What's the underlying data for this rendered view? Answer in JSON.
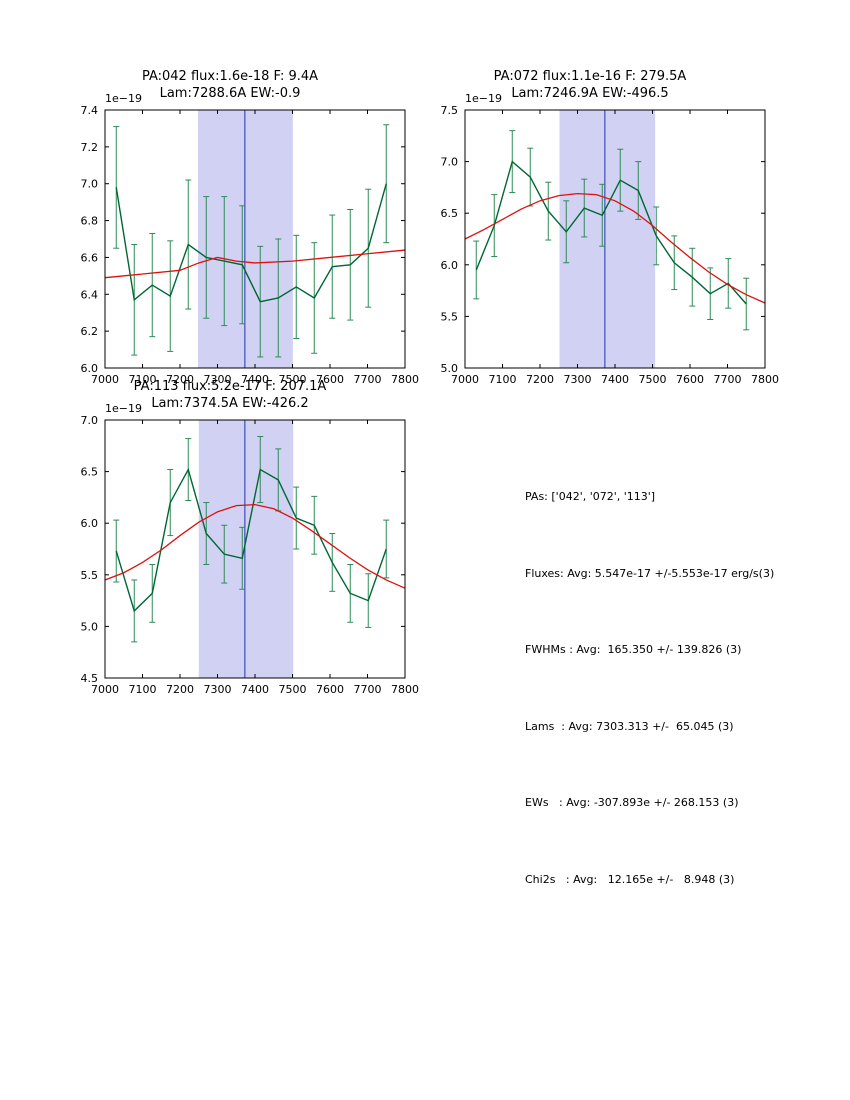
{
  "page": {
    "background": "#ffffff"
  },
  "colors": {
    "data_line": "#006633",
    "error_bar": "#2e8b57",
    "fit_line": "#dd1111",
    "band_fill": "#b4b4ee",
    "band_opacity": 0.62,
    "vline": "#2233aa",
    "axes": "#000000"
  },
  "stats": {
    "lines": [
      "PAs: ['042', '072', '113']",
      "Fluxes: Avg: 5.547e-17 +/-5.553e-17 erg/s(3)",
      "FWHMs : Avg:  165.350 +/- 139.826 (3)",
      "Lams  : Avg: 7303.313 +/-  65.045 (3)",
      "EWs   : Avg: -307.893e +/- 268.153 (3)",
      "Chi2s   : Avg:   12.165e +/-   8.948 (3)"
    ]
  },
  "chart_data": [
    {
      "type": "line",
      "id": "pa042",
      "title1": "PA:042 flux:1.6e-18 F: 9.4A",
      "title2": "Lam:7288.6A EW:-0.9",
      "offset_label": "1e−19",
      "xlim": [
        7000,
        7800
      ],
      "ylim": [
        6.0,
        7.4
      ],
      "xticks": [
        7000,
        7100,
        7200,
        7300,
        7400,
        7500,
        7600,
        7700,
        7800
      ],
      "xticklabels": [
        "7000",
        "7100",
        "7200",
        "7300",
        "7400",
        "7500",
        "7600",
        "7700",
        "7800"
      ],
      "yticks": [
        6.0,
        6.2,
        6.4,
        6.6,
        6.8,
        7.0,
        7.2,
        7.4
      ],
      "yticklabels": [
        "6.0",
        "6.2",
        "6.4",
        "6.6",
        "6.8",
        "7.0",
        "7.2",
        "7.4"
      ],
      "band": [
        7248,
        7501
      ],
      "vline": 7373,
      "x": [
        7030,
        7078,
        7126,
        7174,
        7222,
        7270,
        7318,
        7366,
        7414,
        7462,
        7510,
        7558,
        7606,
        7654,
        7702,
        7750
      ],
      "y": [
        6.98,
        6.37,
        6.45,
        6.39,
        6.67,
        6.6,
        6.58,
        6.56,
        6.36,
        6.38,
        6.44,
        6.38,
        6.55,
        6.56,
        6.65,
        7.0
      ],
      "yerr": [
        0.33,
        0.3,
        0.28,
        0.3,
        0.35,
        0.33,
        0.35,
        0.32,
        0.3,
        0.32,
        0.28,
        0.3,
        0.28,
        0.3,
        0.32,
        0.32
      ],
      "fit_x": [
        7000,
        7100,
        7200,
        7250,
        7300,
        7350,
        7400,
        7500,
        7600,
        7700,
        7800
      ],
      "fit_y": [
        6.49,
        6.51,
        6.53,
        6.57,
        6.6,
        6.58,
        6.57,
        6.58,
        6.6,
        6.62,
        6.64
      ]
    },
    {
      "type": "line",
      "id": "pa072",
      "title1": "PA:072 flux:1.1e-16 F: 279.5A",
      "title2": "Lam:7246.9A EW:-496.5",
      "offset_label": "1e−19",
      "xlim": [
        7000,
        7800
      ],
      "ylim": [
        5.0,
        7.5
      ],
      "xticks": [
        7000,
        7100,
        7200,
        7300,
        7400,
        7500,
        7600,
        7700,
        7800
      ],
      "xticklabels": [
        "7000",
        "7100",
        "7200",
        "7300",
        "7400",
        "7500",
        "7600",
        "7700",
        "7800"
      ],
      "yticks": [
        5.0,
        5.5,
        6.0,
        6.5,
        7.0,
        7.5
      ],
      "yticklabels": [
        "5.0",
        "5.5",
        "6.0",
        "6.5",
        "7.0",
        "7.5"
      ],
      "band": [
        7252,
        7507
      ],
      "vline": 7373,
      "x": [
        7030,
        7078,
        7126,
        7174,
        7222,
        7270,
        7318,
        7366,
        7414,
        7462,
        7510,
        7558,
        7606,
        7654,
        7702,
        7750
      ],
      "y": [
        5.95,
        6.38,
        7.0,
        6.85,
        6.52,
        6.32,
        6.55,
        6.48,
        6.82,
        6.72,
        6.28,
        6.02,
        5.88,
        5.72,
        5.82,
        5.62
      ],
      "yerr": [
        0.28,
        0.3,
        0.3,
        0.28,
        0.28,
        0.3,
        0.28,
        0.3,
        0.3,
        0.28,
        0.28,
        0.26,
        0.28,
        0.25,
        0.24,
        0.25
      ],
      "fit_x": [
        7000,
        7050,
        7100,
        7150,
        7200,
        7250,
        7300,
        7350,
        7400,
        7450,
        7500,
        7550,
        7600,
        7650,
        7700,
        7750,
        7800
      ],
      "fit_y": [
        6.25,
        6.34,
        6.44,
        6.54,
        6.62,
        6.67,
        6.69,
        6.68,
        6.62,
        6.52,
        6.38,
        6.22,
        6.07,
        5.93,
        5.81,
        5.71,
        5.63
      ]
    },
    {
      "type": "line",
      "id": "pa113",
      "title1": "PA:113 flux:5.2e-17 F: 207.1A",
      "title2": "Lam:7374.5A EW:-426.2",
      "offset_label": "1e−19",
      "xlim": [
        7000,
        7800
      ],
      "ylim": [
        4.5,
        7.0
      ],
      "xticks": [
        7000,
        7100,
        7200,
        7300,
        7400,
        7500,
        7600,
        7700,
        7800
      ],
      "xticklabels": [
        "7000",
        "7100",
        "7200",
        "7300",
        "7400",
        "7500",
        "7600",
        "7700",
        "7800"
      ],
      "yticks": [
        4.5,
        5.0,
        5.5,
        6.0,
        6.5,
        7.0
      ],
      "yticklabels": [
        "4.5",
        "5.0",
        "5.5",
        "6.0",
        "6.5",
        "7.0"
      ],
      "band": [
        7250,
        7502
      ],
      "vline": 7373,
      "x": [
        7030,
        7078,
        7126,
        7174,
        7222,
        7270,
        7318,
        7366,
        7414,
        7462,
        7510,
        7558,
        7606,
        7654,
        7702,
        7750
      ],
      "y": [
        5.73,
        5.15,
        5.32,
        6.2,
        6.52,
        5.9,
        5.7,
        5.66,
        6.52,
        6.42,
        6.05,
        5.98,
        5.62,
        5.32,
        5.25,
        5.75
      ],
      "yerr": [
        0.3,
        0.3,
        0.28,
        0.32,
        0.3,
        0.3,
        0.28,
        0.3,
        0.32,
        0.3,
        0.3,
        0.28,
        0.28,
        0.28,
        0.26,
        0.28
      ],
      "fit_x": [
        7000,
        7050,
        7100,
        7150,
        7200,
        7250,
        7300,
        7350,
        7400,
        7450,
        7500,
        7550,
        7600,
        7650,
        7700,
        7750,
        7800
      ],
      "fit_y": [
        5.45,
        5.52,
        5.62,
        5.74,
        5.88,
        6.01,
        6.11,
        6.17,
        6.18,
        6.14,
        6.05,
        5.93,
        5.8,
        5.67,
        5.55,
        5.45,
        5.37
      ]
    }
  ]
}
